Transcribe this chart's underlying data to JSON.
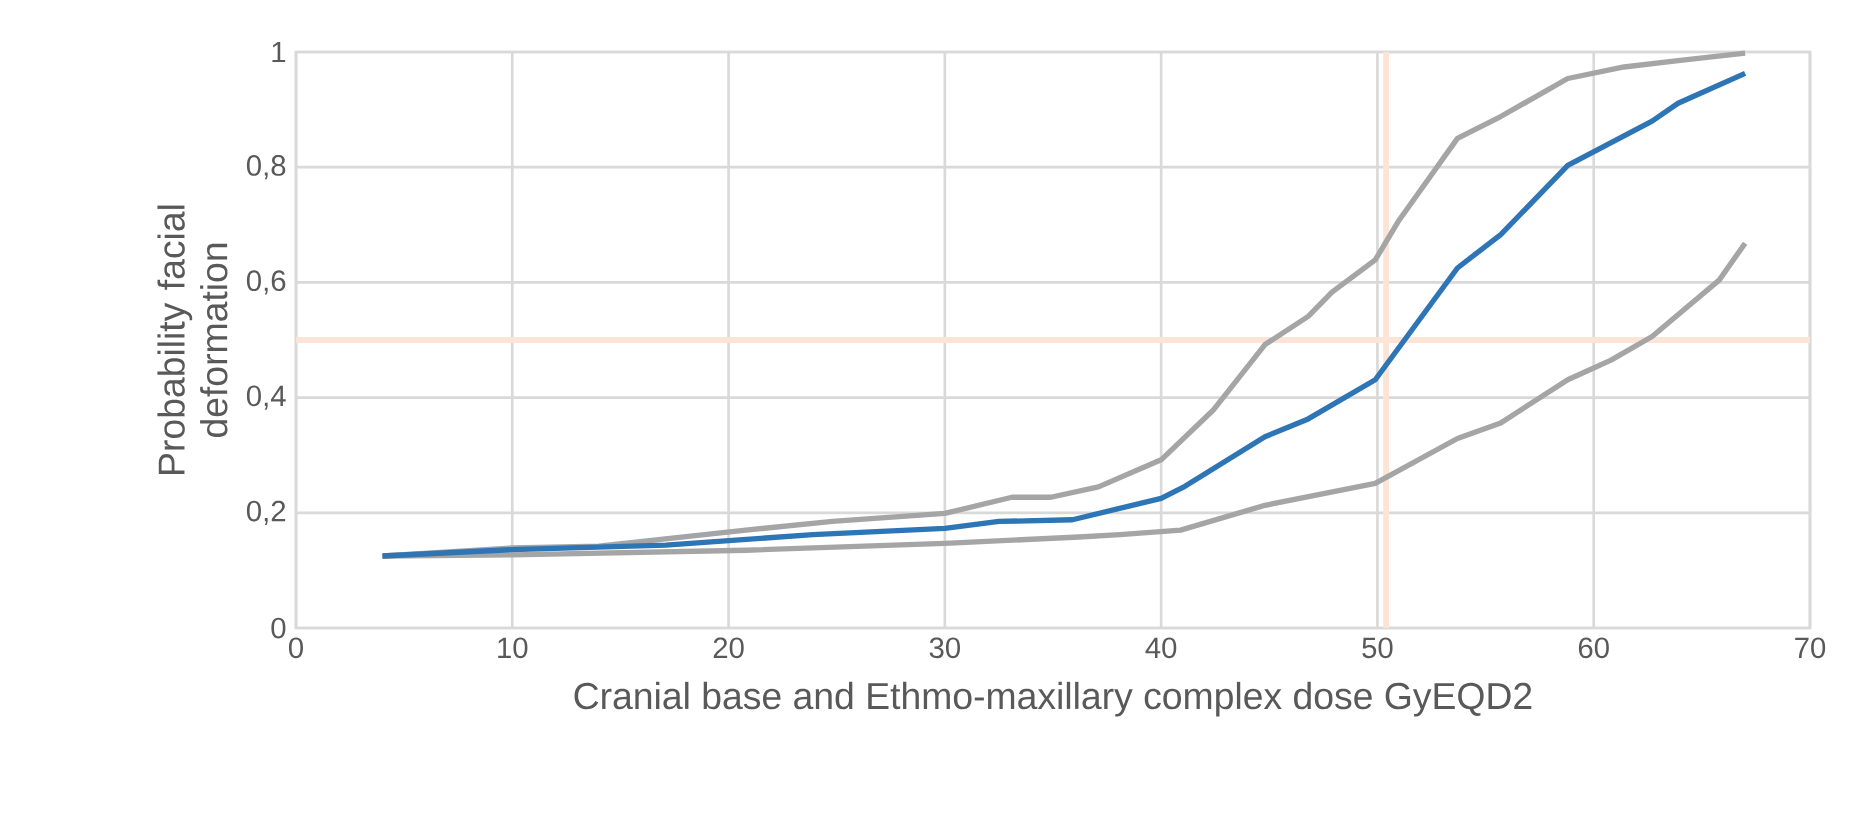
{
  "chart_data": {
    "type": "line",
    "xlabel": "Cranial base and Ethmo-maxillary complex dose GyEQD2",
    "ylabel": "Probability facial deformation",
    "xlim": [
      0,
      70
    ],
    "xticks": [
      0,
      10,
      20,
      30,
      40,
      50,
      60,
      70
    ],
    "ylim": [
      0,
      1
    ],
    "yticks": [
      0,
      {
        "value": 0.2,
        "label": "0,2"
      },
      {
        "value": 0.4,
        "label": "0,4"
      },
      {
        "value": 0.6,
        "label": "0,6"
      },
      {
        "value": 0.8,
        "label": "0,8"
      },
      1
    ],
    "grid": true,
    "line_style": "solid",
    "series": [
      {
        "color": "#a5a5a5",
        "x": [
          4,
          10,
          14,
          20.8,
          24.8,
          30,
          33.1,
          34.9,
          37.1,
          40,
          42.4,
          44.8,
          46.8,
          47.9,
          49.9,
          51,
          53.7,
          55.7,
          58.8,
          61.4,
          63.9,
          67
        ],
        "values": [
          0.125,
          0.139,
          0.142,
          0.17,
          0.185,
          0.199,
          0.227,
          0.227,
          0.245,
          0.292,
          0.378,
          0.492,
          0.541,
          0.583,
          0.639,
          0.708,
          0.85,
          0.888,
          0.954,
          0.974,
          0.985,
          0.998
        ]
      },
      {
        "color": "#a5a5a5",
        "x": [
          4,
          10,
          20.8,
          30,
          36.2,
          38.1,
          40.9,
          44.8,
          49.9,
          53.7,
          55.7,
          58.8,
          60.8,
          62.7,
          65.8,
          67
        ],
        "values": [
          0.125,
          0.127,
          0.135,
          0.147,
          0.158,
          0.162,
          0.17,
          0.213,
          0.251,
          0.329,
          0.356,
          0.431,
          0.465,
          0.506,
          0.604,
          0.668
        ]
      },
      {
        "color": "#2e75b6",
        "x": [
          4,
          10,
          17.1,
          23.9,
          30,
          32.5,
          35.9,
          40,
          41.1,
          44.8,
          46.8,
          49.9,
          53.7,
          55.7,
          58.8,
          62.7,
          63.9,
          67
        ],
        "values": [
          0.125,
          0.136,
          0.144,
          0.162,
          0.173,
          0.185,
          0.188,
          0.225,
          0.246,
          0.332,
          0.363,
          0.431,
          0.625,
          0.683,
          0.803,
          0.88,
          0.911,
          0.963
        ]
      }
    ],
    "ref_lines": [
      {
        "axis": "y",
        "value": 0.5,
        "color": "#fce4d6"
      },
      {
        "axis": "x",
        "value": 50.4,
        "color": "#fce4d6"
      }
    ]
  }
}
